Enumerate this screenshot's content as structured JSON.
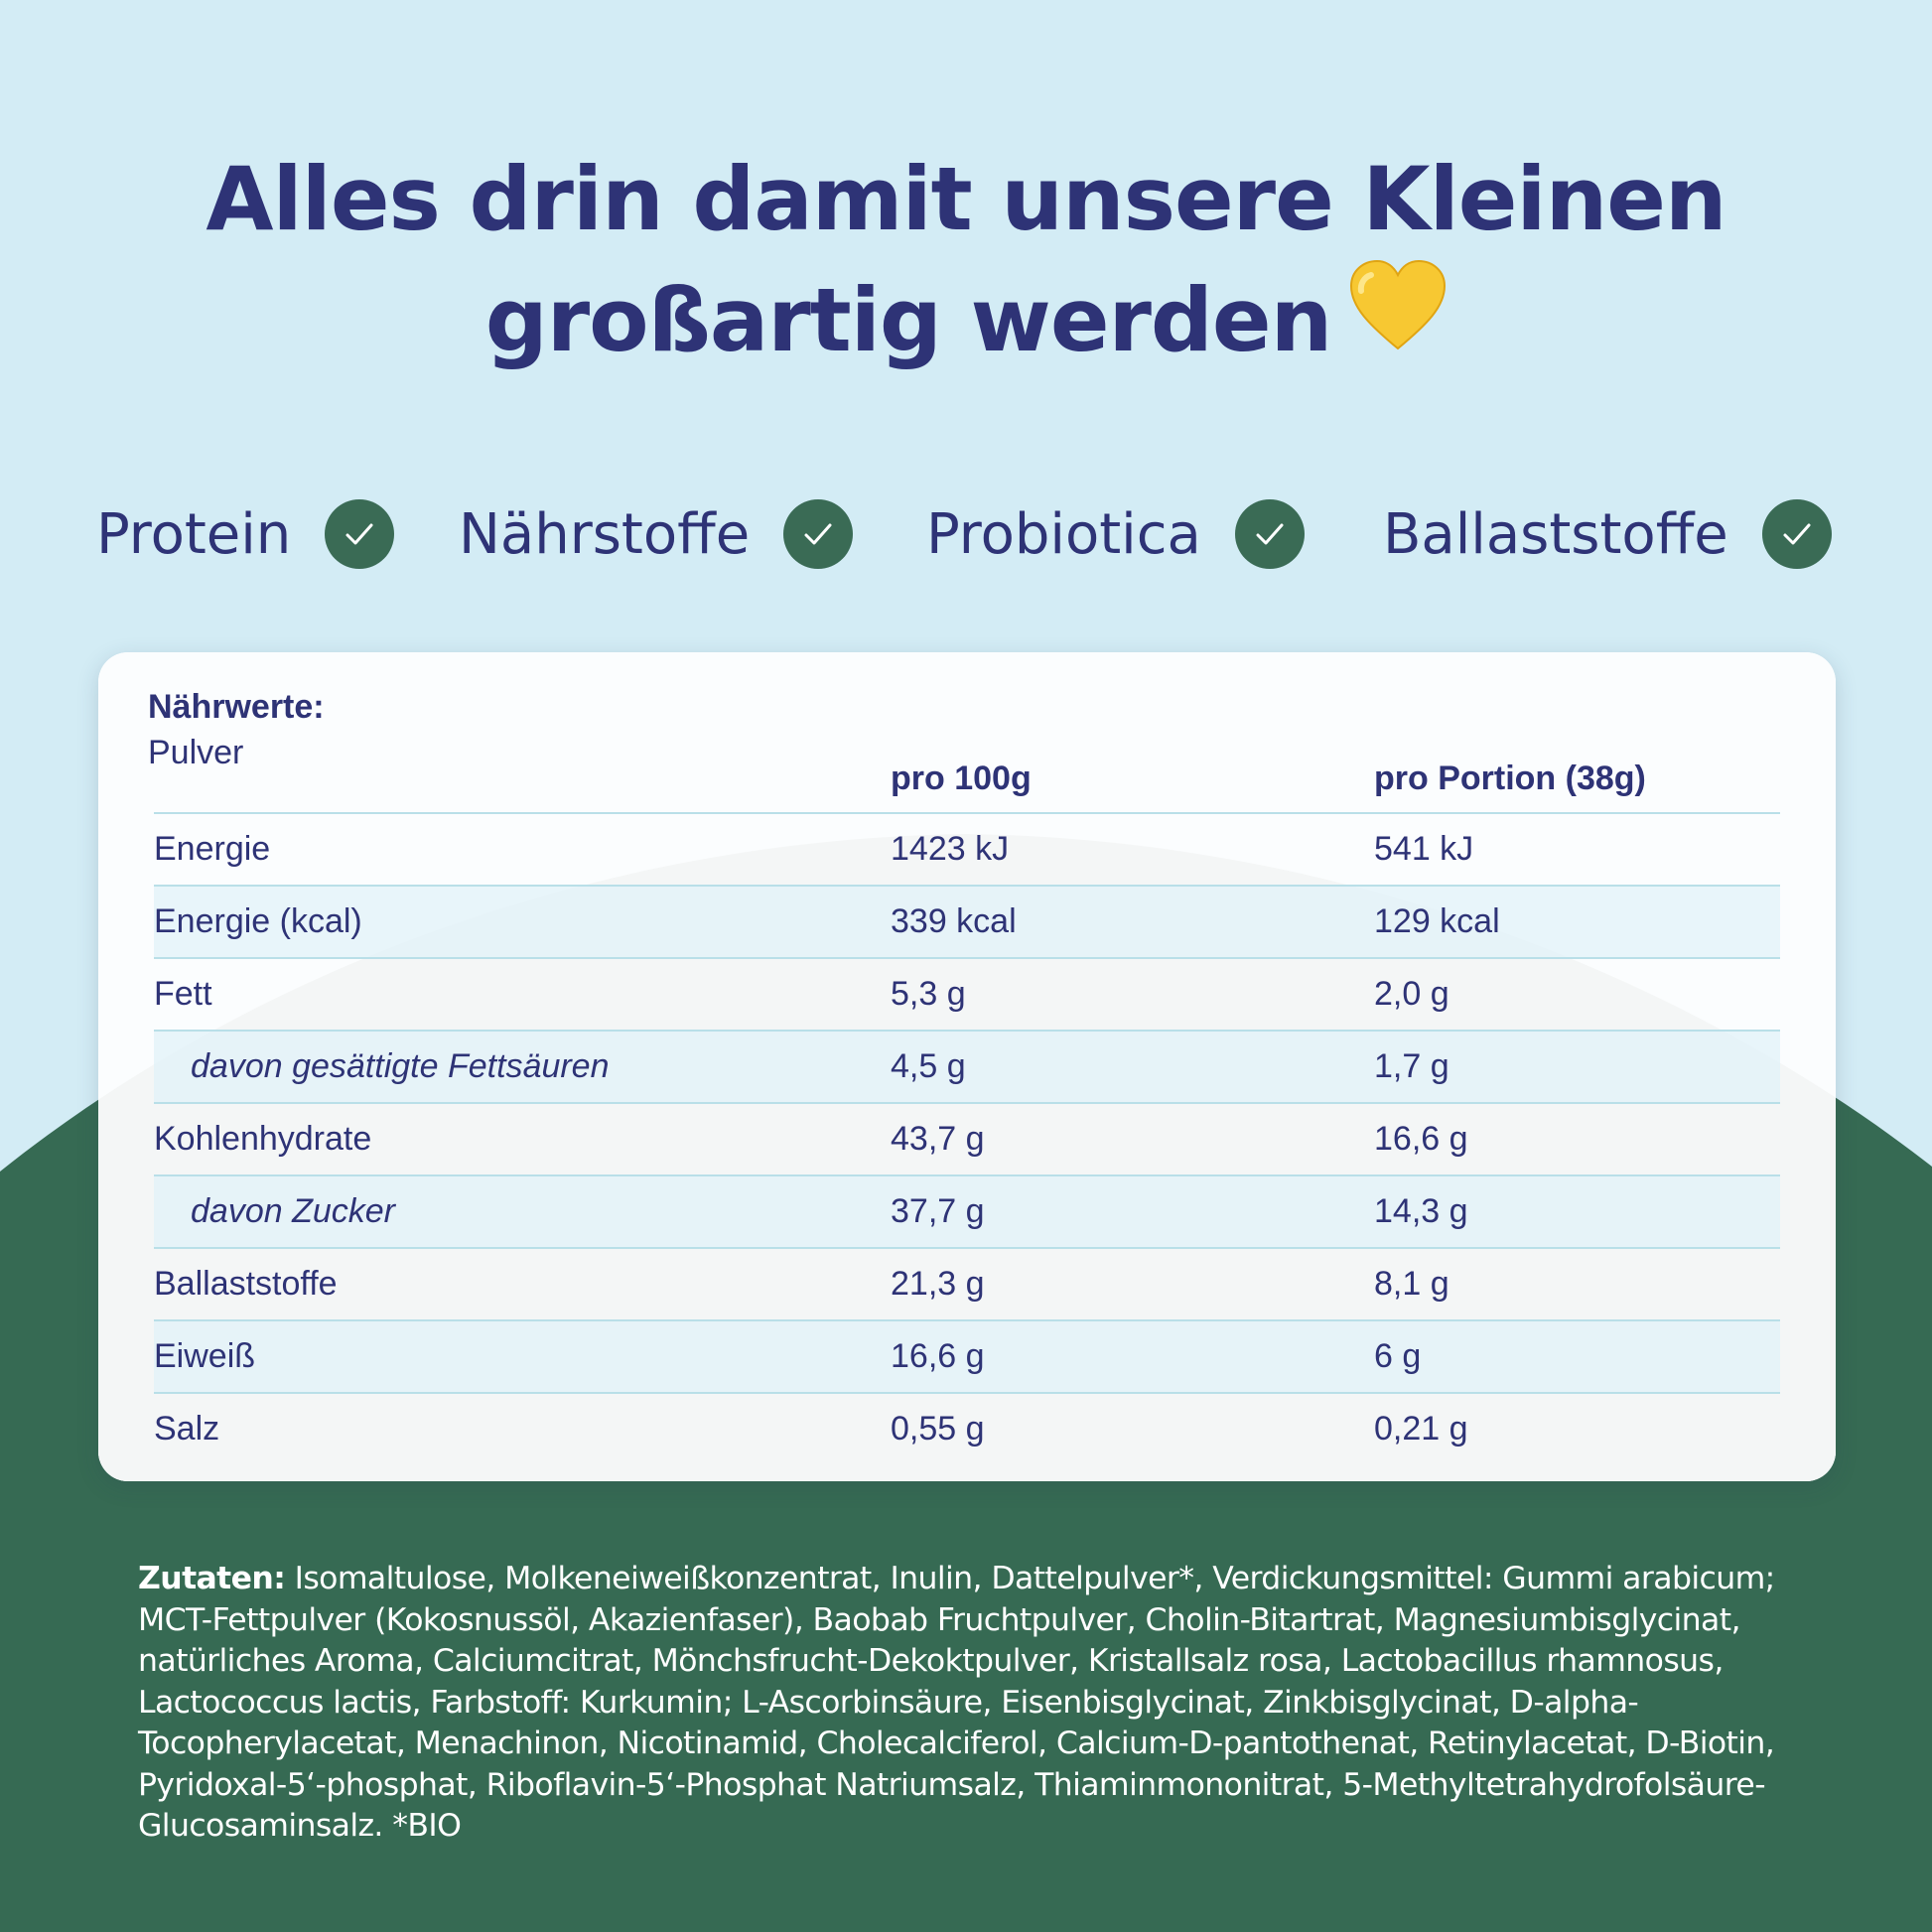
{
  "colors": {
    "background_top": "#d3ecf5",
    "background_bottom": "#366a53",
    "text_primary": "#2e3376",
    "check_circle": "#3a6b55",
    "heart": "#f7c832"
  },
  "headline": {
    "line1": "Alles drin damit unsere Kleinen",
    "line2": "großartig werden",
    "emoji_icon": "yellow-heart-icon"
  },
  "features": [
    {
      "label": "Protein",
      "icon": "check-icon"
    },
    {
      "label": "Nährstoffe",
      "icon": "check-icon"
    },
    {
      "label": "Probiotica",
      "icon": "check-icon"
    },
    {
      "label": "Ballaststoffe",
      "icon": "check-icon"
    }
  ],
  "nutrition": {
    "title": "Nährwerte:",
    "subtitle": "Pulver",
    "columns": [
      "pro 100g",
      "pro Portion (38g)"
    ],
    "rows": [
      {
        "name": "Energie",
        "per100": "1423 kJ",
        "portion": "541 kJ",
        "sub": false
      },
      {
        "name": "Energie (kcal)",
        "per100": "339 kcal",
        "portion": "129 kcal",
        "sub": false
      },
      {
        "name": "Fett",
        "per100": "5,3 g",
        "portion": "2,0 g",
        "sub": false
      },
      {
        "name": "davon gesättigte Fettsäuren",
        "per100": "4,5 g",
        "portion": "1,7 g",
        "sub": true
      },
      {
        "name": "Kohlenhydrate",
        "per100": "43,7 g",
        "portion": "16,6 g",
        "sub": false
      },
      {
        "name": "davon Zucker",
        "per100": "37,7 g",
        "portion": "14,3 g",
        "sub": true
      },
      {
        "name": "Ballaststoffe",
        "per100": "21,3 g",
        "portion": "8,1 g",
        "sub": false
      },
      {
        "name": "Eiweiß",
        "per100": "16,6 g",
        "portion": "6 g",
        "sub": false
      },
      {
        "name": "Salz",
        "per100": "0,55 g",
        "portion": "0,21 g",
        "sub": false
      }
    ]
  },
  "ingredients": {
    "label": "Zutaten:",
    "text": " Isomaltulose, Molkeneiweißkonzentrat, Inulin, Dattelpulver*, Verdickungsmittel: Gummi arabicum; MCT-Fettpulver (Kokosnussöl, Akazienfaser), Baobab Fruchtpulver, Cholin-Bitartrat, Magnesiumbisglycinat, natürliches Aroma, Calciumcitrat, Mönchsfrucht-Dekoktpulver, Kristallsalz rosa, Lactobacillus rhamnosus, Lactococcus lactis, Farbstoff: Kurkumin; L-Ascorbinsäure, Eisenbisglycinat, Zinkbisglycinat, D-alpha-Tocopherylacetat, Menachinon, Nicotinamid, Cholecalciferol, Calcium-D-pantothenat, Retinylacetat, D-Biotin, Pyridoxal-5‘-phosphat, Riboflavin-5‘-Phosphat Natriumsalz, Thiaminmononitrat, 5-Methyltetrahydrofolsäure-Glucosaminsalz. *BIO"
  }
}
